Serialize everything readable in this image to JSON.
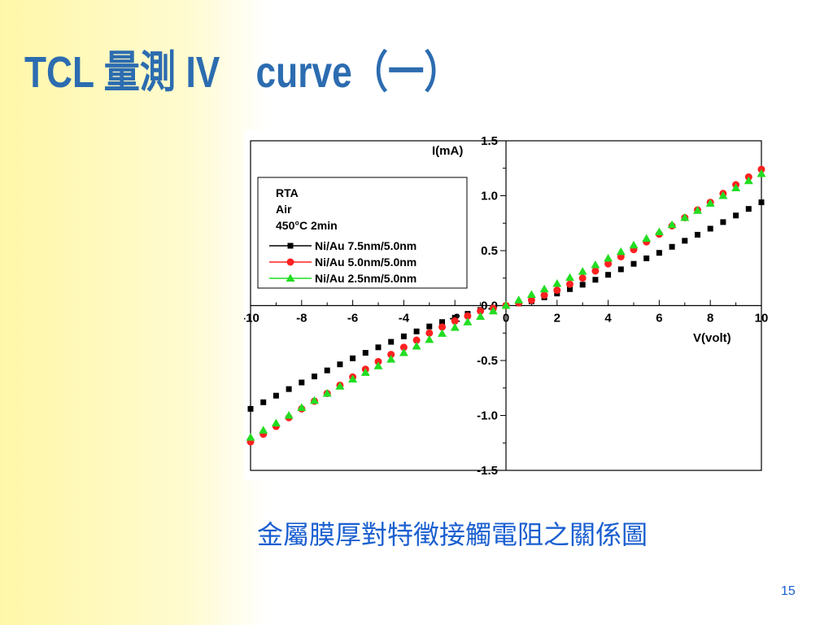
{
  "slide": {
    "title": "TCL 量測 IV　curve（一）",
    "caption": "金屬膜厚對特徵接觸電阻之關係圖",
    "page_number": "15",
    "colors": {
      "title": "#2c6cb0",
      "caption": "#1a5fd0",
      "side_band": "#fff7a8"
    }
  },
  "chart_data": {
    "type": "scatter",
    "xlabel": "V(volt)",
    "ylabel": "I(mA)",
    "xlim": [
      -10,
      10
    ],
    "ylim": [
      -1.5,
      1.5
    ],
    "xticks": [
      -10,
      -8,
      -6,
      -4,
      -2,
      0,
      2,
      4,
      6,
      8,
      10
    ],
    "xtick_labels": [
      "-10",
      "-8",
      "-6",
      "-4",
      "-2",
      "0",
      "2",
      "4",
      "6",
      "8",
      "10"
    ],
    "yticks": [
      -1.5,
      -1.0,
      -0.5,
      0.0,
      0.5,
      1.0,
      1.5
    ],
    "ytick_labels": [
      "-1.5",
      "-1.0",
      "-0.5",
      "0.0",
      "0.5",
      "1.0",
      "1.5"
    ],
    "grid": false,
    "legend_placement": "top-left",
    "legend_header": [
      "RTA",
      "Air",
      "450°C  2min"
    ],
    "series": [
      {
        "name": "Ni/Au  7.5nm/5.0nm",
        "marker": "square",
        "color": "#000000",
        "x": [
          -10,
          -9,
          -8,
          -7,
          -6,
          -5,
          -4,
          -3,
          -2,
          -1,
          0,
          1,
          2,
          3,
          4,
          5,
          6,
          7,
          8,
          9,
          10
        ],
        "y": [
          -0.94,
          -0.82,
          -0.7,
          -0.59,
          -0.48,
          -0.38,
          -0.28,
          -0.19,
          -0.11,
          -0.04,
          0.0,
          0.04,
          0.11,
          0.19,
          0.28,
          0.38,
          0.48,
          0.59,
          0.7,
          0.82,
          0.94
        ]
      },
      {
        "name": "Ni/Au  5.0nm/5.0nm",
        "marker": "circle",
        "color": "#ff2020",
        "x": [
          -10,
          -9,
          -8,
          -7,
          -6,
          -5,
          -4,
          -3,
          -2,
          -1,
          0,
          1,
          2,
          3,
          4,
          5,
          6,
          7,
          8,
          9,
          10
        ],
        "y": [
          -1.24,
          -1.1,
          -0.94,
          -0.8,
          -0.65,
          -0.51,
          -0.38,
          -0.25,
          -0.14,
          -0.05,
          0.0,
          0.05,
          0.14,
          0.25,
          0.38,
          0.51,
          0.65,
          0.8,
          0.94,
          1.1,
          1.24
        ]
      },
      {
        "name": "Ni/Au  2.5nm/5.0nm",
        "marker": "triangle",
        "color": "#22dd22",
        "x": [
          -10,
          -9,
          -8,
          -7,
          -6,
          -5,
          -4,
          -3,
          -2,
          -1,
          0,
          1,
          2,
          3,
          4,
          5,
          6,
          7,
          8,
          9,
          10
        ],
        "y": [
          -1.2,
          -1.07,
          -0.93,
          -0.8,
          -0.67,
          -0.55,
          -0.43,
          -0.31,
          -0.2,
          -0.1,
          0.0,
          0.1,
          0.2,
          0.31,
          0.43,
          0.55,
          0.67,
          0.8,
          0.93,
          1.07,
          1.2
        ]
      }
    ]
  }
}
